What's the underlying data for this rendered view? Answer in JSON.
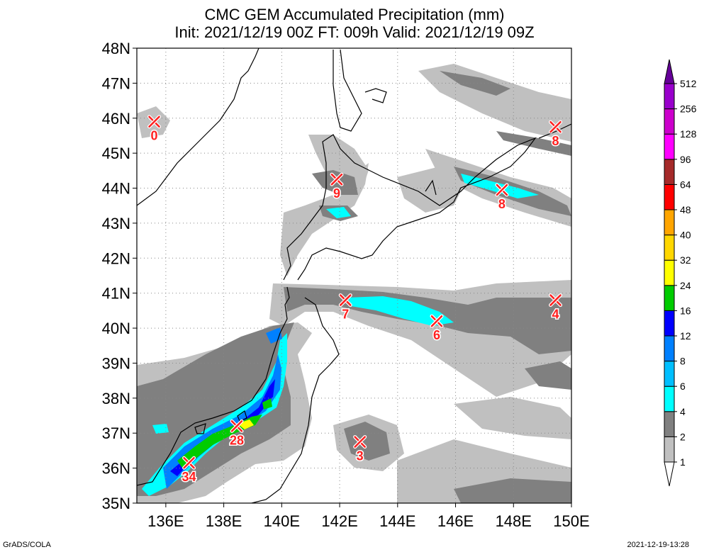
{
  "title": "CMC GEM Accumulated Precipitation (mm)",
  "subtitle": "Init: 2021/12/19 00Z  FT: 009h  Valid: 2021/12/19 09Z",
  "footer_left": "GrADS/COLA",
  "footer_right": "2021-12-19-13:28",
  "map": {
    "lon_range": [
      135,
      150
    ],
    "lat_range": [
      35,
      48
    ],
    "lon_ticks": [
      136,
      138,
      140,
      142,
      144,
      146,
      148,
      150
    ],
    "lon_labels": [
      "136E",
      "138E",
      "140E",
      "142E",
      "144E",
      "146E",
      "148E",
      "150E"
    ],
    "lat_ticks": [
      35,
      36,
      37,
      38,
      39,
      40,
      41,
      42,
      43,
      44,
      45,
      46,
      47,
      48
    ],
    "lat_labels": [
      "35N",
      "36N",
      "37N",
      "38N",
      "39N",
      "40N",
      "41N",
      "42N",
      "43N",
      "44N",
      "45N",
      "46N",
      "47N",
      "48N"
    ],
    "grid": "dotted"
  },
  "colorbar": {
    "levels": [
      "1",
      "2",
      "4",
      "6",
      "8",
      "12",
      "16",
      "24",
      "32",
      "40",
      "48",
      "64",
      "96",
      "128",
      "256",
      "512"
    ],
    "colors": [
      "#ffffff",
      "#c0c0c0",
      "#808080",
      "#00ffff",
      "#00bfff",
      "#0080ff",
      "#0000ff",
      "#00cc00",
      "#ffff00",
      "#ffd700",
      "#ffa500",
      "#ff0000",
      "#a52a2a",
      "#ff00ff",
      "#cc00cc",
      "#9900cc",
      "#660099"
    ]
  },
  "markers": [
    {
      "lon": 135.6,
      "lat": 45.9,
      "value": "0"
    },
    {
      "lon": 141.9,
      "lat": 44.25,
      "value": "9"
    },
    {
      "lon": 147.6,
      "lat": 43.95,
      "value": "8"
    },
    {
      "lon": 149.45,
      "lat": 45.75,
      "value": "8"
    },
    {
      "lon": 142.2,
      "lat": 40.8,
      "value": "7"
    },
    {
      "lon": 145.35,
      "lat": 40.2,
      "value": "6"
    },
    {
      "lon": 149.45,
      "lat": 40.8,
      "value": "4"
    },
    {
      "lon": 138.45,
      "lat": 37.2,
      "value": "28"
    },
    {
      "lon": 142.7,
      "lat": 36.75,
      "value": "3"
    },
    {
      "lon": 136.8,
      "lat": 36.15,
      "value": "34"
    }
  ]
}
